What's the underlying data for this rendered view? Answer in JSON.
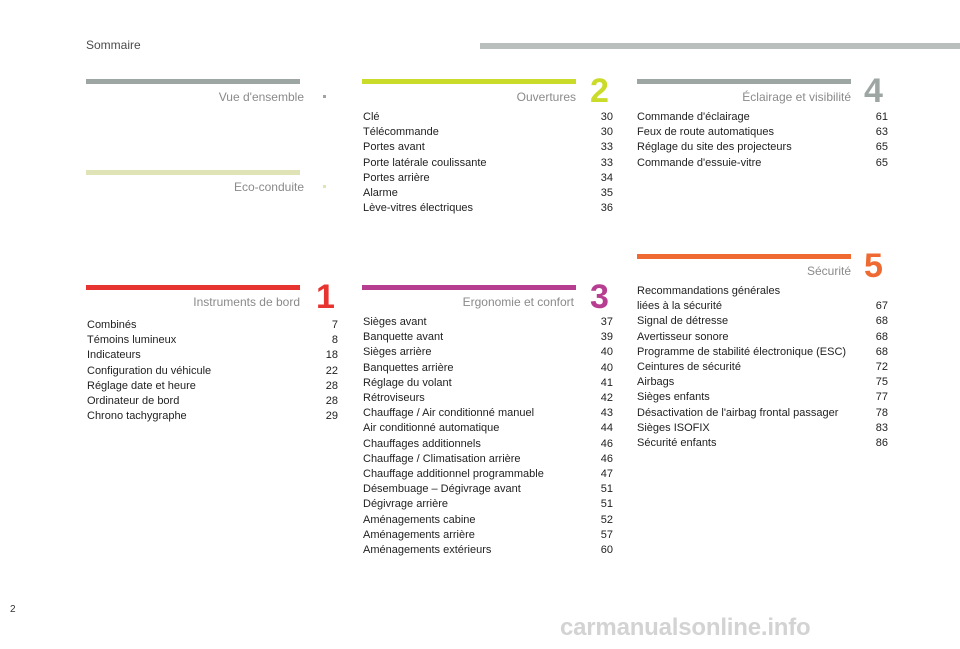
{
  "header": {
    "title": "Sommaire"
  },
  "page_number": "2",
  "watermark": "carmanualsonline.info",
  "colors": {
    "grey": "#9ea6a3",
    "eco": "#dfe3b6",
    "instruments": "#e73431",
    "ouvertures": "#cadb2a",
    "ergonomie": "#b63d8f",
    "eclairage": "#9ea6a3",
    "securite": "#ef6a32"
  },
  "sections": {
    "vue": {
      "title": "Vue d'ensemble"
    },
    "eco": {
      "title": "Eco-conduite"
    },
    "instruments": {
      "title": "Instruments de bord",
      "number": "1",
      "items": [
        {
          "label": "Combinés",
          "page": "7"
        },
        {
          "label": "Témoins lumineux",
          "page": "8"
        },
        {
          "label": "Indicateurs",
          "page": "18"
        },
        {
          "label": "Configuration du véhicule",
          "page": "22"
        },
        {
          "label": "Réglage date et heure",
          "page": "28"
        },
        {
          "label": "Ordinateur de bord",
          "page": "28"
        },
        {
          "label": "Chrono tachygraphe",
          "page": "29"
        }
      ]
    },
    "ouvertures": {
      "title": "Ouvertures",
      "number": "2",
      "items": [
        {
          "label": "Clé",
          "page": "30"
        },
        {
          "label": "Télécommande",
          "page": "30"
        },
        {
          "label": "Portes avant",
          "page": "33"
        },
        {
          "label": "Porte latérale coulissante",
          "page": "33"
        },
        {
          "label": "Portes arrière",
          "page": "34"
        },
        {
          "label": "Alarme",
          "page": "35"
        },
        {
          "label": "Lève-vitres électriques",
          "page": "36"
        }
      ]
    },
    "ergonomie": {
      "title": "Ergonomie et confort",
      "number": "3",
      "items": [
        {
          "label": "Sièges avant",
          "page": "37"
        },
        {
          "label": "Banquette avant",
          "page": "39"
        },
        {
          "label": "Sièges arrière",
          "page": "40"
        },
        {
          "label": "Banquettes arrière",
          "page": "40"
        },
        {
          "label": "Réglage du volant",
          "page": "41"
        },
        {
          "label": "Rétroviseurs",
          "page": "42"
        },
        {
          "label": "Chauffage / Air conditionné manuel",
          "page": "43"
        },
        {
          "label": "Air conditionné automatique",
          "page": "44"
        },
        {
          "label": "Chauffages additionnels",
          "page": "46"
        },
        {
          "label": "Chauffage / Climatisation arrière",
          "page": "46"
        },
        {
          "label": "Chauffage additionnel programmable",
          "page": "47"
        },
        {
          "label": "Désembuage – Dégivrage avant",
          "page": "51"
        },
        {
          "label": "Dégivrage arrière",
          "page": "51"
        },
        {
          "label": "Aménagements cabine",
          "page": "52"
        },
        {
          "label": "Aménagements arrière",
          "page": "57"
        },
        {
          "label": "Aménagements extérieurs",
          "page": "60"
        }
      ]
    },
    "eclairage": {
      "title": "Éclairage et visibilité",
      "number": "4",
      "items": [
        {
          "label": "Commande d'éclairage",
          "page": "61"
        },
        {
          "label": "Feux de route automatiques",
          "page": "63"
        },
        {
          "label": "Réglage du site des projecteurs",
          "page": "65"
        },
        {
          "label": "Commande d'essuie-vitre",
          "page": "65"
        }
      ]
    },
    "securite": {
      "title": "Sécurité",
      "number": "5",
      "first_line1": "Recommandations générales",
      "first_line2": "liées à la sécurité",
      "first_page": "67",
      "items": [
        {
          "label": "Signal de détresse",
          "page": "68"
        },
        {
          "label": "Avertisseur sonore",
          "page": "68"
        },
        {
          "label": "Programme de stabilité électronique (ESC)",
          "page": "68"
        },
        {
          "label": "Ceintures de sécurité",
          "page": "72"
        },
        {
          "label": "Airbags",
          "page": "75"
        },
        {
          "label": "Sièges enfants",
          "page": "77"
        },
        {
          "label": "Désactivation de l'airbag frontal passager",
          "page": "78"
        },
        {
          "label": "Sièges ISOFIX",
          "page": "83"
        },
        {
          "label": "Sécurité enfants",
          "page": "86"
        }
      ]
    }
  }
}
